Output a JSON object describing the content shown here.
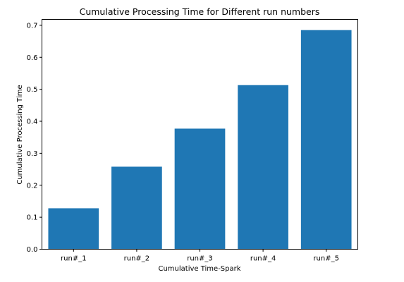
{
  "chart_data": {
    "type": "bar",
    "title": "Cumulative Processing Time for Different run numbers",
    "xlabel": "Cumulative Time-Spark",
    "ylabel": "Cumulative Processing Time",
    "categories": [
      "run#_1",
      "run#_2",
      "run#_3",
      "run#_4",
      "run#_5"
    ],
    "values": [
      0.128,
      0.258,
      0.377,
      0.513,
      0.685
    ],
    "ylim": [
      0,
      0.7185
    ],
    "yticks": [
      0.0,
      0.1,
      0.2,
      0.3,
      0.4,
      0.5,
      0.6,
      0.7
    ],
    "ytick_labels": [
      "0.0",
      "0.1",
      "0.2",
      "0.3",
      "0.4",
      "0.5",
      "0.6",
      "0.7"
    ],
    "bar_color": "#1f77b4",
    "grid": false
  }
}
